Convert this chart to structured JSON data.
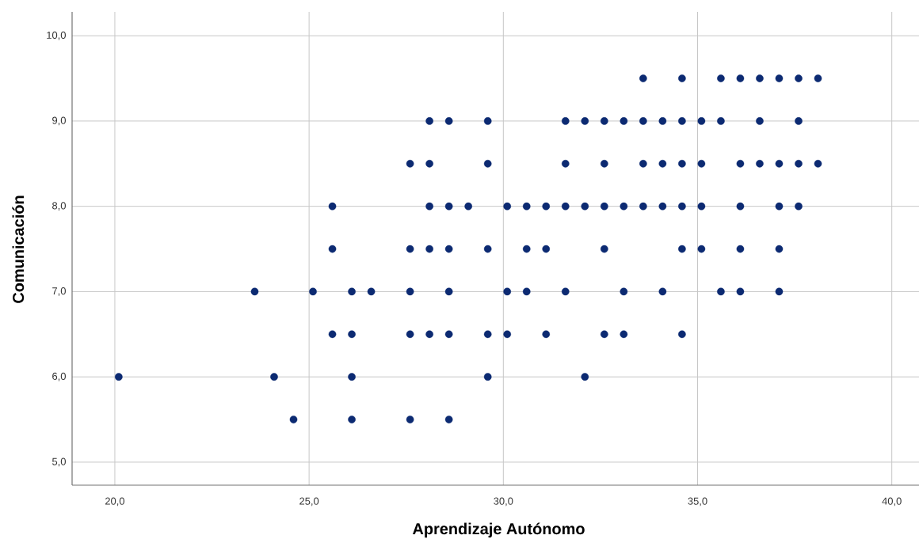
{
  "chart_data": {
    "type": "scatter",
    "xlabel": "Aprendizaje Autónomo",
    "ylabel": "Comunicación",
    "xlim": [
      18.9,
      40.7
    ],
    "ylim": [
      4.73,
      10.28
    ],
    "xticks": [
      {
        "value": 20,
        "label": "20,0"
      },
      {
        "value": 25,
        "label": "25,0"
      },
      {
        "value": 30,
        "label": "30,0"
      },
      {
        "value": 35,
        "label": "35,0"
      },
      {
        "value": 40,
        "label": "40,0"
      }
    ],
    "yticks": [
      {
        "value": 5,
        "label": "5,0"
      },
      {
        "value": 6,
        "label": "6,0"
      },
      {
        "value": 7,
        "label": "7,0"
      },
      {
        "value": 8,
        "label": "8,0"
      },
      {
        "value": 9,
        "label": "9,0"
      },
      {
        "value": 10,
        "label": "10,0"
      }
    ],
    "grid": true,
    "marker": "circle",
    "series": [
      {
        "color": "#0c2a72",
        "x": [
          33.6,
          34.6,
          35.6,
          36.1,
          36.6,
          37.1,
          37.6,
          38.1,
          28.1,
          28.6,
          29.6,
          31.6,
          32.1,
          32.6,
          33.1,
          33.6,
          34.1,
          34.6,
          35.1,
          35.6,
          36.6,
          37.6,
          27.6,
          28.1,
          29.6,
          31.6,
          32.6,
          33.6,
          34.1,
          34.6,
          35.1,
          36.1,
          36.6,
          37.1,
          37.6,
          38.1,
          25.6,
          28.1,
          28.6,
          29.1,
          30.1,
          30.6,
          31.1,
          31.6,
          32.1,
          32.6,
          33.1,
          33.6,
          34.1,
          34.6,
          35.1,
          36.1,
          37.1,
          37.6,
          25.6,
          27.6,
          28.1,
          28.6,
          29.6,
          30.6,
          31.1,
          32.6,
          34.6,
          35.1,
          36.1,
          37.1,
          23.6,
          25.1,
          26.1,
          26.6,
          27.6,
          28.6,
          30.1,
          30.6,
          31.6,
          33.1,
          34.1,
          35.6,
          36.1,
          37.1,
          25.6,
          26.1,
          27.6,
          28.1,
          28.6,
          29.6,
          30.1,
          31.1,
          32.6,
          33.1,
          34.6,
          20.1,
          24.1,
          26.1,
          29.6,
          32.1,
          24.6,
          26.1,
          27.6,
          28.6
        ],
        "values": [
          9.5,
          9.5,
          9.5,
          9.5,
          9.5,
          9.5,
          9.5,
          9.5,
          9,
          9,
          9,
          9,
          9,
          9,
          9,
          9,
          9,
          9,
          9,
          9,
          9,
          9,
          8.5,
          8.5,
          8.5,
          8.5,
          8.5,
          8.5,
          8.5,
          8.5,
          8.5,
          8.5,
          8.5,
          8.5,
          8.5,
          8.5,
          8,
          8,
          8,
          8,
          8,
          8,
          8,
          8,
          8,
          8,
          8,
          8,
          8,
          8,
          8,
          8,
          8,
          8,
          7.5,
          7.5,
          7.5,
          7.5,
          7.5,
          7.5,
          7.5,
          7.5,
          7.5,
          7.5,
          7.5,
          7.5,
          7,
          7,
          7,
          7,
          7,
          7,
          7,
          7,
          7,
          7,
          7,
          7,
          7,
          7,
          6.5,
          6.5,
          6.5,
          6.5,
          6.5,
          6.5,
          6.5,
          6.5,
          6.5,
          6.5,
          6.5,
          6,
          6,
          6,
          6,
          6,
          5.5,
          5.5,
          5.5,
          5.5
        ]
      }
    ]
  }
}
